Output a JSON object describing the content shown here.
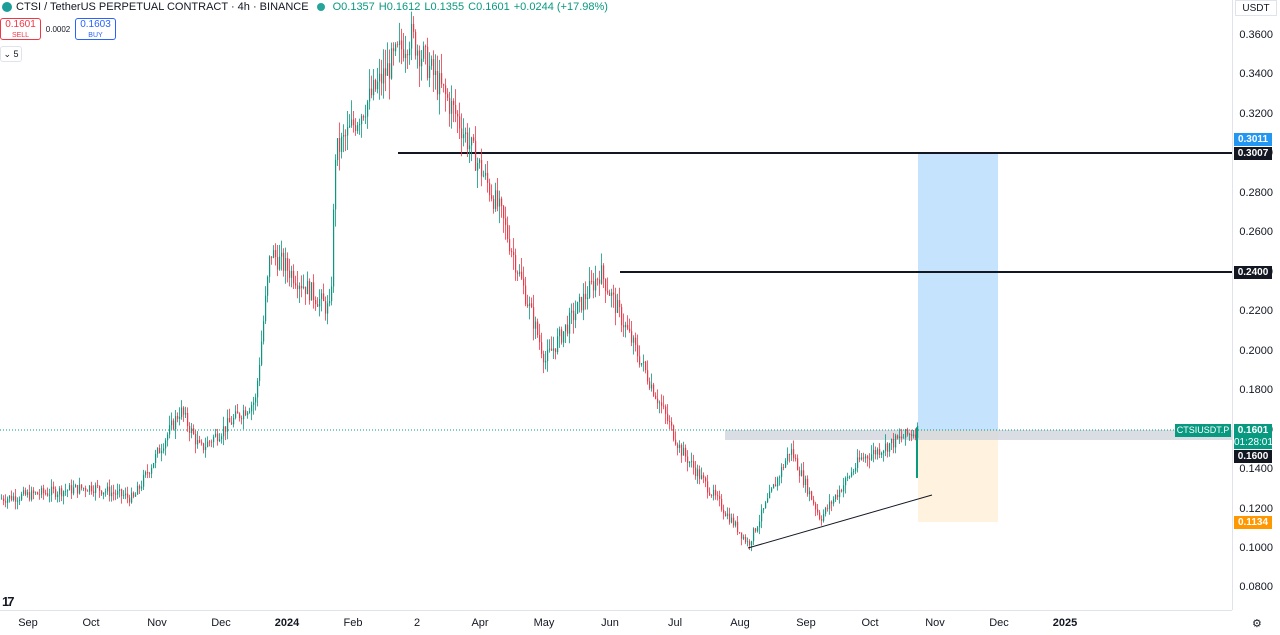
{
  "header": {
    "symbol": "CTSI / TetherUS PERPETUAL CONTRACT · 4h · BINANCE",
    "open": "O0.1357",
    "high": "H0.1612",
    "low": "L0.1355",
    "close": "C0.1601",
    "change": "+0.0244 (+17.98%)"
  },
  "trade": {
    "sell_price": "0.1601",
    "sell_label": "SELL",
    "spread": "0.0002",
    "buy_price": "0.1603",
    "buy_label": "BUY"
  },
  "indicator_toggle": "5",
  "currency": "USDT",
  "tags": {
    "target_high": "0.3011",
    "target_line": "0.3007",
    "resistance": "0.2400",
    "symbol_name": "CTSIUSDT.P",
    "last_price": "0.1601",
    "countdown": "01:28:01",
    "entry": "0.1600",
    "stop": "0.1134"
  },
  "colors": {
    "up": "#089981",
    "down": "#f23645",
    "target_zone": "#bbdefb",
    "stop_zone": "#fff3e0",
    "tag_blue": "#2196f3",
    "tag_black": "#131722",
    "tag_teal": "#089981",
    "tag_orange": "#ff9800"
  },
  "icons": {
    "symbol": "ctsi-logo-icon",
    "status": "market-open-dot-icon",
    "toggle": "chevron-down-icon",
    "logo": "tradingview-logo-icon",
    "settings": "gear-icon"
  },
  "chart_data": {
    "type": "candlestick",
    "timeframe": "4h",
    "y_ticks": [
      "0.3600",
      "0.3400",
      "0.3200",
      "0.3000",
      "0.2800",
      "0.2600",
      "0.2400",
      "0.2200",
      "0.2000",
      "0.1800",
      "0.1600",
      "0.1400",
      "0.1200",
      "0.1000",
      "0.0800"
    ],
    "ylim": [
      0.07,
      0.375
    ],
    "x_ticks": [
      "Sep",
      "Oct",
      "Nov",
      "Dec",
      "2024",
      "Feb",
      "2",
      "Apr",
      "May",
      "Jun",
      "Jul",
      "Aug",
      "Sep",
      "Oct",
      "Nov",
      "Dec",
      "2025"
    ],
    "bold_ticks": [
      "2024",
      "2025"
    ],
    "horizontal_lines": [
      0.3007,
      0.24
    ],
    "trendline": [
      {
        "x": "Aug",
        "y": 0.1
      },
      {
        "x": "Oct",
        "y": 0.127
      }
    ],
    "price_path": [
      {
        "x": "Sep",
        "y": 0.125
      },
      {
        "x": "Oct",
        "y": 0.131
      },
      {
        "x": "Nov",
        "y": 0.125
      },
      {
        "x": "Nov",
        "y": 0.17
      },
      {
        "x": "Dec",
        "y": 0.15
      },
      {
        "x": "Dec",
        "y": 0.175
      },
      {
        "x": "2024",
        "y": 0.25
      },
      {
        "x": "2024",
        "y": 0.22
      },
      {
        "x": "Feb",
        "y": 0.3
      },
      {
        "x": "Feb",
        "y": 0.345
      },
      {
        "x": "2",
        "y": 0.36
      },
      {
        "x": "Apr",
        "y": 0.32
      },
      {
        "x": "Apr",
        "y": 0.27
      },
      {
        "x": "May",
        "y": 0.195
      },
      {
        "x": "Jun",
        "y": 0.24
      },
      {
        "x": "Jul",
        "y": 0.15
      },
      {
        "x": "Aug",
        "y": 0.102
      },
      {
        "x": "Aug",
        "y": 0.15
      },
      {
        "x": "Sep",
        "y": 0.115
      },
      {
        "x": "Oct",
        "y": 0.145
      },
      {
        "x": "Oct",
        "y": 0.1601
      }
    ],
    "position": {
      "entry": 0.16,
      "target": 0.3011,
      "stop": 0.1134,
      "start": "Oct",
      "end": "Dec"
    }
  }
}
